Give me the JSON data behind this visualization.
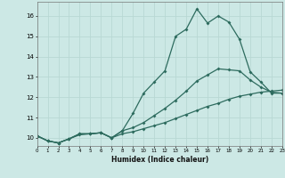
{
  "xlabel": "Humidex (Indice chaleur)",
  "bg_color": "#cce8e5",
  "line_color": "#2d6b5e",
  "grid_color": "#b8d8d4",
  "xmin": 0,
  "xmax": 23,
  "ymin": 9.6,
  "ymax": 16.7,
  "yticks": [
    10,
    11,
    12,
    13,
    14,
    15,
    16
  ],
  "xticks": [
    0,
    1,
    2,
    3,
    4,
    5,
    6,
    7,
    8,
    9,
    10,
    11,
    12,
    13,
    14,
    15,
    16,
    17,
    18,
    19,
    20,
    21,
    22,
    23
  ],
  "line1_x": [
    0,
    1,
    2,
    3,
    4,
    5,
    6,
    7,
    8,
    9,
    10,
    11,
    12,
    13,
    14,
    15,
    16,
    17,
    18,
    19,
    20,
    21,
    22,
    23
  ],
  "line1_y": [
    10.1,
    9.85,
    9.75,
    9.95,
    10.2,
    10.2,
    10.25,
    10.0,
    10.35,
    11.2,
    12.2,
    12.75,
    13.3,
    15.0,
    15.35,
    16.35,
    15.65,
    16.0,
    15.7,
    14.85,
    13.25,
    12.75,
    12.2,
    12.2
  ],
  "line2_x": [
    0,
    1,
    2,
    3,
    4,
    5,
    6,
    7,
    8,
    9,
    10,
    11,
    12,
    13,
    14,
    15,
    16,
    17,
    18,
    19,
    20,
    21,
    22,
    23
  ],
  "line2_y": [
    10.1,
    9.85,
    9.75,
    9.95,
    10.2,
    10.2,
    10.25,
    10.0,
    10.35,
    10.5,
    10.75,
    11.1,
    11.45,
    11.85,
    12.3,
    12.8,
    13.1,
    13.4,
    13.35,
    13.3,
    12.85,
    12.5,
    12.25,
    12.2
  ],
  "line3_x": [
    0,
    1,
    2,
    3,
    4,
    5,
    6,
    7,
    8,
    9,
    10,
    11,
    12,
    13,
    14,
    15,
    16,
    17,
    18,
    19,
    20,
    21,
    22,
    23
  ],
  "line3_y": [
    10.1,
    9.85,
    9.75,
    9.95,
    10.15,
    10.2,
    10.25,
    10.0,
    10.2,
    10.3,
    10.45,
    10.6,
    10.75,
    10.95,
    11.15,
    11.35,
    11.55,
    11.7,
    11.9,
    12.05,
    12.15,
    12.25,
    12.3,
    12.35
  ]
}
